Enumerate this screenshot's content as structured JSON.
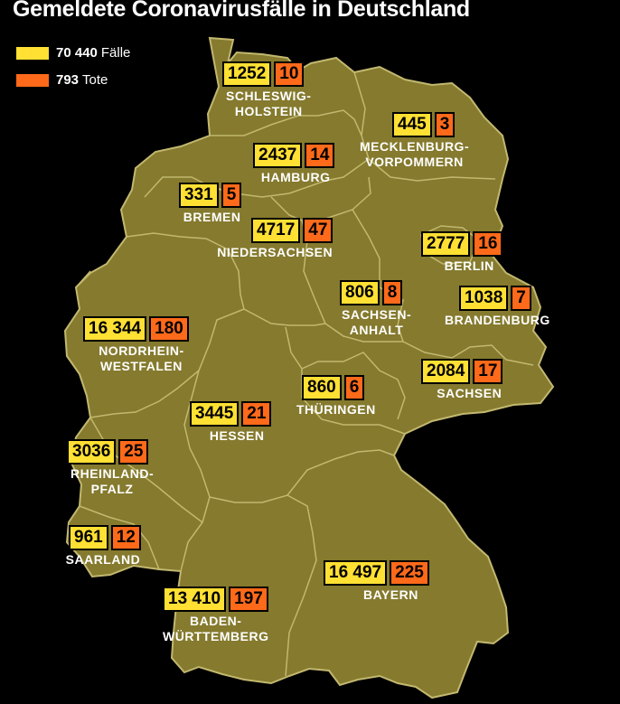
{
  "title": "Gemeldete Coronavirusfälle in Deutschland",
  "legend": {
    "cases": {
      "number": "70 440",
      "label": "Fälle",
      "color": "#ffe033"
    },
    "deaths": {
      "number": "793",
      "label": "Tote",
      "color": "#ff6a1a"
    }
  },
  "colors": {
    "map_fill": "#857a2e",
    "border": "#c2b86f",
    "background": "#000000"
  },
  "states": [
    {
      "id": "schleswig-holstein",
      "label": "SCHLESWIG-\nHOLSTEIN",
      "cases": "1252",
      "deaths": "10"
    },
    {
      "id": "mecklenburg-vorpommern",
      "label": "MECKLENBURG-\nVORPOMMERN",
      "cases": "445",
      "deaths": "3"
    },
    {
      "id": "hamburg",
      "label": "HAMBURG",
      "cases": "2437",
      "deaths": "14"
    },
    {
      "id": "bremen",
      "label": "BREMEN",
      "cases": "331",
      "deaths": "5"
    },
    {
      "id": "niedersachsen",
      "label": "NIEDERSACHSEN",
      "cases": "4717",
      "deaths": "47"
    },
    {
      "id": "berlin",
      "label": "BERLIN",
      "cases": "2777",
      "deaths": "16"
    },
    {
      "id": "brandenburg",
      "label": "BRANDENBURG",
      "cases": "1038",
      "deaths": "7"
    },
    {
      "id": "sachsen-anhalt",
      "label": "SACHSEN-\nANHALT",
      "cases": "806",
      "deaths": "8"
    },
    {
      "id": "nordrhein-westfalen",
      "label": "NORDRHEIN-\nWESTFALEN",
      "cases": "16 344",
      "deaths": "180"
    },
    {
      "id": "sachsen",
      "label": "SACHSEN",
      "cases": "2084",
      "deaths": "17"
    },
    {
      "id": "thueringen",
      "label": "THÜRINGEN",
      "cases": "860",
      "deaths": "6"
    },
    {
      "id": "hessen",
      "label": "HESSEN",
      "cases": "3445",
      "deaths": "21"
    },
    {
      "id": "rheinland-pfalz",
      "label": "RHEINLAND-\nPFALZ",
      "cases": "3036",
      "deaths": "25"
    },
    {
      "id": "saarland",
      "label": "SAARLAND",
      "cases": "961",
      "deaths": "12"
    },
    {
      "id": "bayern",
      "label": "BAYERN",
      "cases": "16 497",
      "deaths": "225"
    },
    {
      "id": "baden-wuerttemberg",
      "label": "BADEN-\nWÜRTTEMBERG",
      "cases": "13 410",
      "deaths": "197"
    }
  ]
}
